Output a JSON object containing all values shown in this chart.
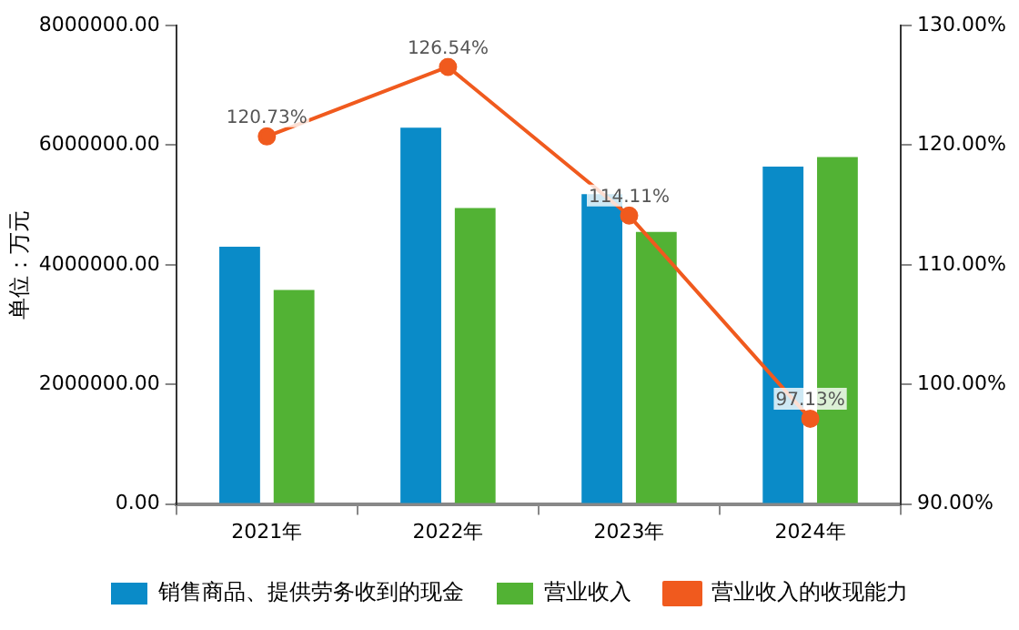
{
  "chart_data": {
    "type": "bar",
    "categories": [
      "2021年",
      "2022年",
      "2023年",
      "2024年"
    ],
    "ylabel": "单位：万元",
    "series": [
      {
        "name": "销售商品、提供劳务收到的现金",
        "color": "#0a8bc8",
        "values": [
          4300000,
          6290000,
          5180000,
          5640000
        ]
      },
      {
        "name": "营业收入",
        "color": "#52b234",
        "values": [
          3580000,
          4950000,
          4550000,
          5800000
        ]
      },
      {
        "name": "营业收入的收现能力",
        "color": "#f05a1e",
        "type": "line",
        "axis": "y2",
        "marker": "circle",
        "values": [
          120.73,
          126.54,
          114.11,
          97.13
        ],
        "value_labels": [
          "120.73%",
          "126.54%",
          "114.11%",
          "97.13%"
        ]
      }
    ],
    "ylim": [
      0,
      8000000
    ],
    "yticks": [
      {
        "value": 0,
        "label": "0.00"
      },
      {
        "value": 2000000,
        "label": "2000000.00"
      },
      {
        "value": 4000000,
        "label": "4000000.00"
      },
      {
        "value": 6000000,
        "label": "6000000.00"
      },
      {
        "value": 8000000,
        "label": "8000000.00"
      }
    ],
    "y2lim": [
      90,
      130
    ],
    "y2ticks": [
      {
        "value": 90,
        "label": "90.00%"
      },
      {
        "value": 100,
        "label": "100.00%"
      },
      {
        "value": 110,
        "label": "110.00%"
      },
      {
        "value": 120,
        "label": "120.00%"
      },
      {
        "value": 130,
        "label": "130.00%"
      }
    ],
    "grid": false,
    "legend": "bottom"
  }
}
